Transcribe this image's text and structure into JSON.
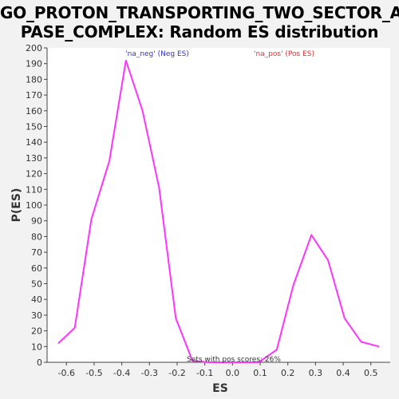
{
  "chart_data": {
    "type": "line",
    "title_lines": [
      "GO_PROTON_TRANSPORTING_TWO_SECTOR_AT",
      "PASE_COMPLEX: Random ES distribution"
    ],
    "xlabel": "ES",
    "ylabel": "P(ES)",
    "xlim": [
      -0.67,
      0.57
    ],
    "ylim": [
      0,
      200
    ],
    "x_ticks": [
      "-0.6",
      "-0.5",
      "-0.4",
      "-0.3",
      "-0.2",
      "-0.1",
      "0.0",
      "0.1",
      "0.2",
      "0.3",
      "0.4",
      "0.5"
    ],
    "x_tick_values": [
      -0.6,
      -0.5,
      -0.4,
      -0.3,
      -0.2,
      -0.1,
      0.0,
      0.1,
      0.2,
      0.3,
      0.4,
      0.5
    ],
    "y_ticks": [
      0,
      10,
      20,
      30,
      40,
      50,
      60,
      70,
      80,
      90,
      100,
      110,
      120,
      130,
      140,
      150,
      160,
      170,
      180,
      190,
      200
    ],
    "series": [
      {
        "color": "#ff33ff",
        "x": [
          -0.63,
          -0.57,
          -0.51,
          -0.445,
          -0.385,
          -0.325,
          -0.265,
          -0.205,
          -0.145,
          -0.085,
          -0.025,
          0.035,
          0.095,
          0.16,
          0.22,
          0.285,
          0.345,
          0.405,
          0.465,
          0.53
        ],
        "y": [
          12,
          22,
          91,
          128,
          192,
          160,
          111,
          28,
          1,
          0,
          0,
          0,
          0,
          8,
          49,
          81,
          65,
          28,
          13,
          10
        ]
      }
    ],
    "annotations": {
      "neg_label": "'na_neg' (Neg ES)",
      "pos_label": "'na_pos' (Pos ES)",
      "neg_color": "#3333cc",
      "pos_color": "#e03030",
      "footer": "Sets with pos scores: 26%"
    },
    "grid": false
  }
}
